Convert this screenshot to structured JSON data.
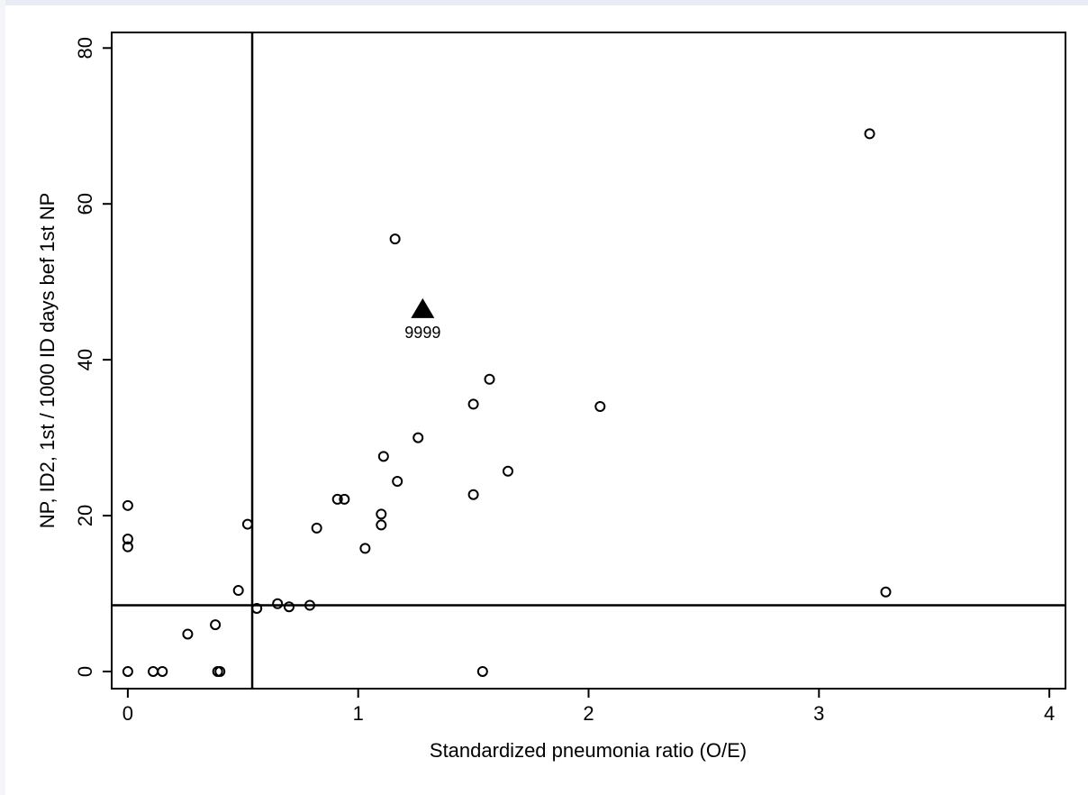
{
  "chart_data": {
    "type": "scatter",
    "xlabel": "Standardized pneumonia ratio (O/E)",
    "ylabel": "NP, ID2, 1st / 1000 ID days bef 1st NP",
    "xlim": [
      -0.07,
      4.07
    ],
    "ylim": [
      -2.2,
      82
    ],
    "x_ticks": [
      0,
      1,
      2,
      3,
      4
    ],
    "x_tick_labels": [
      "0",
      "1",
      "2",
      "3",
      "4"
    ],
    "y_ticks": [
      0,
      20,
      40,
      60,
      80
    ],
    "y_tick_labels": [
      "0",
      "20",
      "40",
      "60",
      "80"
    ],
    "grid": false,
    "reference_lines": {
      "vertical_x": 0.54,
      "horizontal_y": 8.5
    },
    "marker_color": "#000000",
    "series": [
      {
        "marker": "circle",
        "points": [
          [
            0,
            21.3
          ],
          [
            0,
            17.0
          ],
          [
            0,
            16.0
          ],
          [
            0,
            0
          ],
          [
            0.11,
            0
          ],
          [
            0.15,
            0
          ],
          [
            0.26,
            4.8
          ],
          [
            0.38,
            6.0
          ],
          [
            0.39,
            0
          ],
          [
            0.4,
            0
          ],
          [
            0.48,
            10.4
          ],
          [
            0.52,
            18.9
          ],
          [
            0.56,
            8.1
          ],
          [
            0.65,
            8.7
          ],
          [
            0.7,
            8.3
          ],
          [
            0.79,
            8.5
          ],
          [
            0.82,
            18.4
          ],
          [
            0.91,
            22.1
          ],
          [
            0.94,
            22.1
          ],
          [
            1.03,
            15.8
          ],
          [
            1.1,
            20.2
          ],
          [
            1.1,
            18.8
          ],
          [
            1.11,
            27.6
          ],
          [
            1.16,
            55.5
          ],
          [
            1.17,
            24.4
          ],
          [
            1.26,
            30.0
          ],
          [
            1.5,
            22.7
          ],
          [
            1.5,
            34.3
          ],
          [
            1.54,
            0
          ],
          [
            1.57,
            37.5
          ],
          [
            1.65,
            25.7
          ],
          [
            2.05,
            34.0
          ],
          [
            3.22,
            69.0
          ],
          [
            3.29,
            10.2
          ]
        ]
      },
      {
        "marker": "triangle",
        "points": [
          [
            1.28,
            46.5
          ]
        ],
        "labels": [
          "9999"
        ]
      }
    ]
  }
}
